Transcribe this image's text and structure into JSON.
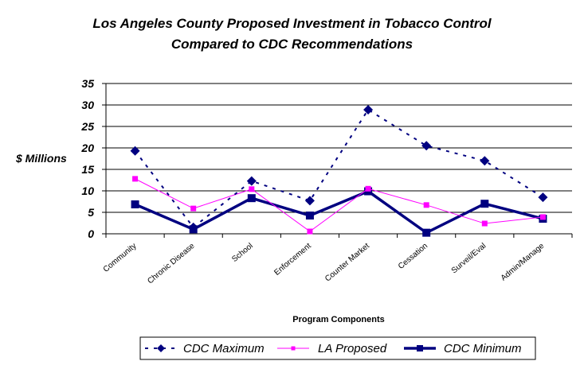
{
  "chart_data": {
    "type": "line",
    "title": "Los Angeles County Proposed Investment in Tobacco Control",
    "subtitle": "Compared to CDC Recommendations",
    "xlabel": "Program Components",
    "ylabel": "$ Millions",
    "ylim": [
      0,
      35
    ],
    "yticks": [
      0,
      5,
      10,
      15,
      20,
      25,
      30,
      35
    ],
    "grid": true,
    "legend_position": "bottom",
    "categories": [
      "Community",
      "Chronic Disease",
      "School",
      "Enforcement",
      "Counter Market",
      "Cessation",
      "Surveil/Eval",
      "Admin/Manage"
    ],
    "series": [
      {
        "name": "CDC Maximum",
        "style": "dashed",
        "marker": "diamond",
        "color": "#000080",
        "values": [
          19.3,
          1.5,
          12.3,
          7.7,
          28.9,
          20.5,
          17.0,
          8.5
        ]
      },
      {
        "name": "LA Proposed",
        "style": "solid-thin",
        "marker": "square",
        "color": "#FF00FF",
        "values": [
          12.8,
          5.9,
          10.4,
          0.55,
          10.5,
          6.7,
          2.4,
          3.9
        ]
      },
      {
        "name": "CDC Minimum",
        "style": "solid-thick",
        "marker": "square",
        "color": "#000080",
        "values": [
          6.85,
          1.05,
          8.3,
          4.25,
          9.9,
          0.25,
          7.0,
          3.5
        ]
      }
    ]
  }
}
